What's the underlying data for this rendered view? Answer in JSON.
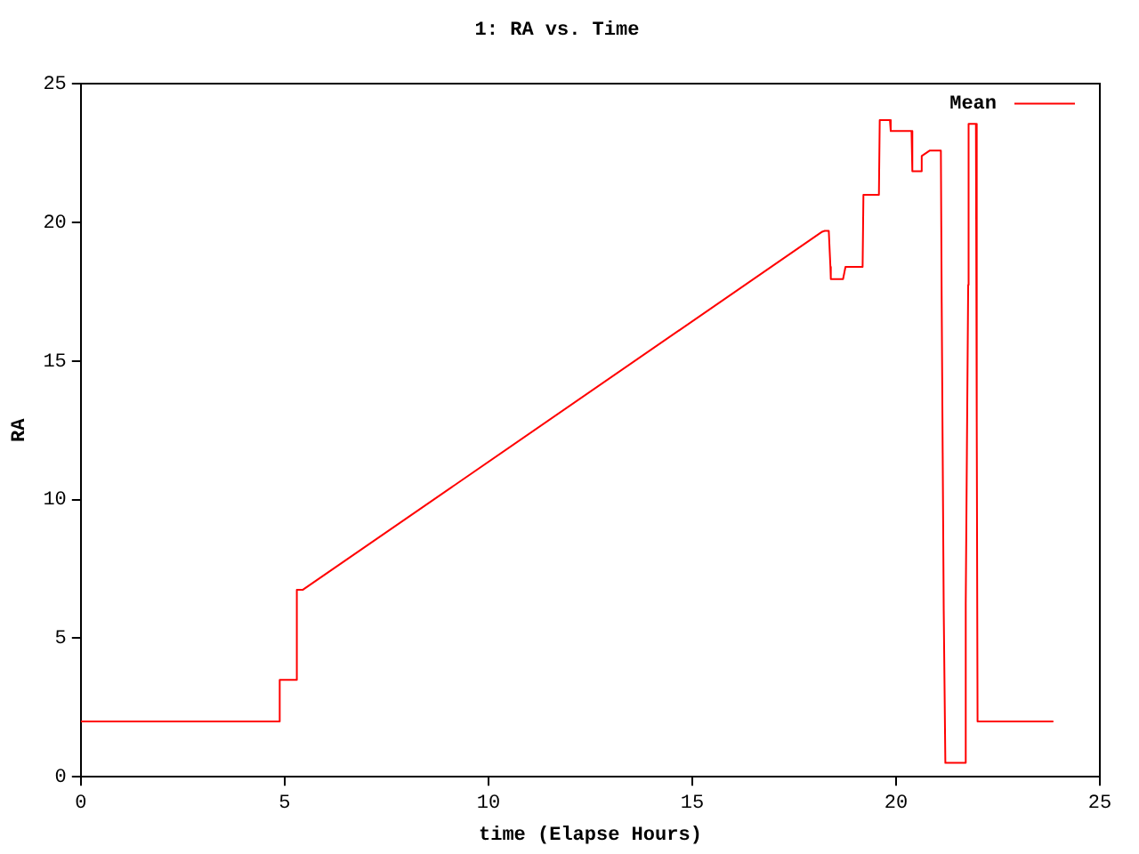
{
  "chart_data": {
    "type": "line",
    "title": "1: RA vs. Time",
    "xlabel": "time (Elapse Hours)",
    "ylabel": "RA",
    "xlim": [
      0,
      25
    ],
    "xticks": [
      0,
      5,
      10,
      15,
      20,
      25
    ],
    "ylim": [
      0,
      25
    ],
    "yticks": [
      0,
      5,
      10,
      15,
      20,
      25
    ],
    "grid": false,
    "legend": "top right",
    "marker": "none",
    "line_style": "solid",
    "series": [
      {
        "name": "Mean",
        "color": "#ff0000",
        "x": [
          0,
          4.88,
          4.88,
          5.28,
          5.3,
          5.45,
          18.19,
          18.25,
          18.35,
          18.39,
          18.4,
          18.7,
          18.76,
          19.18,
          19.2,
          19.58,
          19.6,
          19.85,
          19.87,
          20.38,
          20.4,
          20.6,
          20.63,
          20.83,
          21.1,
          21.12,
          21.17,
          21.21,
          21.69,
          21.71,
          21.77,
          21.78,
          21.96,
          21.98,
          22.0,
          23.86
        ],
        "values": [
          2,
          2,
          3.5,
          3.5,
          6.75,
          6.75,
          19.67,
          19.7,
          19.7,
          18.4,
          17.96,
          17.96,
          18.4,
          18.4,
          21,
          21,
          23.7,
          23.7,
          23.3,
          23.3,
          21.85,
          21.85,
          22.4,
          22.6,
          22.6,
          17.1,
          6,
          0.5,
          0.5,
          6.25,
          17.75,
          23.56,
          23.56,
          12.8,
          2,
          2
        ]
      }
    ]
  }
}
